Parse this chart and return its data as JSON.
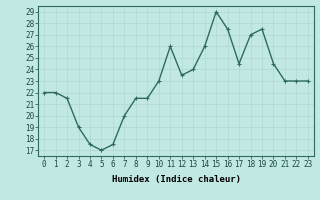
{
  "x": [
    0,
    1,
    2,
    3,
    4,
    5,
    6,
    7,
    8,
    9,
    10,
    11,
    12,
    13,
    14,
    15,
    16,
    17,
    18,
    19,
    20,
    21,
    22,
    23
  ],
  "y": [
    22,
    22,
    21.5,
    19,
    17.5,
    17,
    17.5,
    20,
    21.5,
    21.5,
    23,
    26,
    23.5,
    24,
    26,
    29,
    27.5,
    24.5,
    27,
    27.5,
    24.5,
    23,
    23,
    23
  ],
  "line_color": "#2e6b5e",
  "marker_color": "#2e6b5e",
  "bg_color": "#c2e8e4",
  "grid_color": "#b0d8d4",
  "xlabel": "Humidex (Indice chaleur)",
  "ylim_min": 16.5,
  "ylim_max": 29.5,
  "xlim_min": -0.5,
  "xlim_max": 23.5,
  "yticks": [
    17,
    18,
    19,
    20,
    21,
    22,
    23,
    24,
    25,
    26,
    27,
    28,
    29
  ],
  "xlabel_fontsize": 6.5,
  "tick_fontsize": 5.5,
  "line_width": 1.0,
  "marker_size": 2.5
}
